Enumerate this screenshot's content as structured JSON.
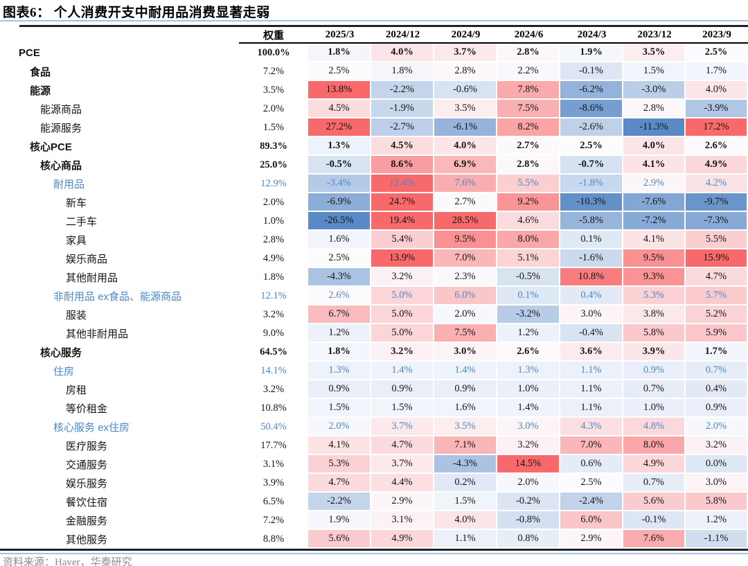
{
  "title": "图表6：  个人消费开支中耐用品消费显著走弱",
  "footer": "资料来源：Haver，华泰研究",
  "colors": {
    "heat_max_red": "#F8696B",
    "heat_neutral": "#FCFCFF",
    "heat_min_blue": "#5A8AC6",
    "highlight_row_text": "#4E86C6",
    "separator_blue": "#A4C2E4",
    "separator_dark": "#222222",
    "footer_gray": "#8C8C8C"
  },
  "chart_data": {
    "type": "heatmap",
    "title": "图表6：  个人消费开支中耐用品消费显著走弱",
    "columns": [
      "权重",
      "2025/3",
      "2024/12",
      "2024/9",
      "2024/6",
      "2024/3",
      "2023/12",
      "2023/9"
    ],
    "value_unit": "%",
    "color_scale": {
      "max_color": "#F8696B",
      "mid_color": "#FCFCFF",
      "min_color": "#5A8AC6",
      "midpoint": 2.5,
      "red_saturation_value": 12.0,
      "blue_saturation_value": -11.0
    },
    "rows": [
      {
        "label": "PCE",
        "indent": 0,
        "label_bold": true,
        "values_bold": true,
        "blue": false,
        "weight": "100.0%",
        "values": [
          1.8,
          4.0,
          3.7,
          2.8,
          1.9,
          3.5,
          2.5
        ]
      },
      {
        "label": "食品",
        "indent": 1,
        "label_bold": true,
        "values_bold": false,
        "blue": false,
        "weight": "7.2%",
        "values": [
          2.5,
          1.8,
          2.8,
          2.2,
          -0.1,
          1.5,
          1.7
        ]
      },
      {
        "label": "能源",
        "indent": 1,
        "label_bold": true,
        "values_bold": false,
        "blue": false,
        "weight": "3.5%",
        "values": [
          13.8,
          -2.2,
          -0.6,
          7.8,
          -6.2,
          -3.0,
          4.0
        ]
      },
      {
        "label": "能源商品",
        "indent": 2,
        "label_bold": false,
        "values_bold": false,
        "blue": false,
        "weight": "2.0%",
        "values": [
          4.5,
          -1.9,
          3.5,
          7.5,
          -8.6,
          2.8,
          -3.9
        ]
      },
      {
        "label": "能源服务",
        "indent": 2,
        "label_bold": false,
        "values_bold": false,
        "blue": false,
        "weight": "1.5%",
        "values": [
          27.2,
          -2.7,
          -6.1,
          8.2,
          -2.6,
          -11.3,
          17.2
        ]
      },
      {
        "label": "核心PCE",
        "indent": 1,
        "label_bold": true,
        "values_bold": true,
        "blue": false,
        "weight": "89.3%",
        "values": [
          1.3,
          4.5,
          4.0,
          2.7,
          2.5,
          4.0,
          2.6
        ]
      },
      {
        "label": "核心商品",
        "indent": 2,
        "label_bold": true,
        "values_bold": true,
        "blue": false,
        "weight": "25.0%",
        "values": [
          -0.5,
          8.6,
          6.9,
          2.8,
          -0.7,
          4.1,
          4.9
        ]
      },
      {
        "label": "耐用品",
        "indent": 3,
        "label_bold": false,
        "values_bold": false,
        "blue": true,
        "weight": "12.9%",
        "values": [
          -3.4,
          12.4,
          7.6,
          5.5,
          -1.8,
          2.9,
          4.2
        ]
      },
      {
        "label": "新车",
        "indent": 4,
        "label_bold": false,
        "values_bold": false,
        "blue": false,
        "weight": "2.0%",
        "values": [
          -6.9,
          24.7,
          2.7,
          9.2,
          -10.3,
          -7.6,
          -9.7
        ]
      },
      {
        "label": "二手车",
        "indent": 4,
        "label_bold": false,
        "values_bold": false,
        "blue": false,
        "weight": "1.0%",
        "values": [
          -26.5,
          19.4,
          28.5,
          4.6,
          -5.8,
          -7.2,
          -7.3
        ]
      },
      {
        "label": "家具",
        "indent": 4,
        "label_bold": false,
        "values_bold": false,
        "blue": false,
        "weight": "2.8%",
        "values": [
          1.6,
          5.4,
          9.5,
          8.0,
          0.1,
          4.1,
          5.5
        ]
      },
      {
        "label": "娱乐商品",
        "indent": 4,
        "label_bold": false,
        "values_bold": false,
        "blue": false,
        "weight": "4.9%",
        "values": [
          2.5,
          13.9,
          7.0,
          5.1,
          -1.6,
          9.5,
          15.9
        ]
      },
      {
        "label": "其他耐用品",
        "indent": 4,
        "label_bold": false,
        "values_bold": false,
        "blue": false,
        "weight": "1.8%",
        "values": [
          -4.3,
          3.2,
          2.3,
          -0.5,
          10.8,
          9.3,
          4.7
        ]
      },
      {
        "label": "非耐用品 ex食品、能源商品",
        "indent": 3,
        "label_bold": false,
        "values_bold": false,
        "blue": true,
        "weight": "12.1%",
        "values": [
          2.6,
          5.0,
          6.0,
          0.1,
          0.4,
          5.3,
          5.7
        ]
      },
      {
        "label": "服装",
        "indent": 4,
        "label_bold": false,
        "values_bold": false,
        "blue": false,
        "weight": "3.2%",
        "values": [
          6.7,
          5.0,
          2.0,
          -3.2,
          3.0,
          3.8,
          5.2
        ]
      },
      {
        "label": "其他非耐用品",
        "indent": 4,
        "label_bold": false,
        "values_bold": false,
        "blue": false,
        "weight": "9.0%",
        "values": [
          1.2,
          5.0,
          7.5,
          1.2,
          -0.4,
          5.8,
          5.9
        ]
      },
      {
        "label": "核心服务",
        "indent": 2,
        "label_bold": true,
        "values_bold": true,
        "blue": false,
        "weight": "64.5%",
        "values": [
          1.8,
          3.2,
          3.0,
          2.6,
          3.6,
          3.9,
          1.7
        ]
      },
      {
        "label": "住房",
        "indent": 3,
        "label_bold": false,
        "values_bold": false,
        "blue": true,
        "weight": "14.1%",
        "values": [
          1.3,
          1.4,
          1.4,
          1.3,
          1.1,
          0.9,
          0.7
        ]
      },
      {
        "label": "房租",
        "indent": 4,
        "label_bold": false,
        "values_bold": false,
        "blue": false,
        "weight": "3.2%",
        "values": [
          0.9,
          0.9,
          0.9,
          1.0,
          1.1,
          0.7,
          0.4
        ]
      },
      {
        "label": "等价租金",
        "indent": 4,
        "label_bold": false,
        "values_bold": false,
        "blue": false,
        "weight": "10.8%",
        "values": [
          1.5,
          1.5,
          1.6,
          1.4,
          1.1,
          1.0,
          0.9
        ]
      },
      {
        "label": "核心服务 ex住房",
        "indent": 3,
        "label_bold": false,
        "values_bold": false,
        "blue": true,
        "weight": "50.4%",
        "values": [
          2.0,
          3.7,
          3.5,
          3.0,
          4.3,
          4.8,
          2.0
        ]
      },
      {
        "label": "医疗服务",
        "indent": 4,
        "label_bold": false,
        "values_bold": false,
        "blue": false,
        "weight": "17.7%",
        "values": [
          4.1,
          4.7,
          7.1,
          3.2,
          7.0,
          8.0,
          3.2
        ]
      },
      {
        "label": "交通服务",
        "indent": 4,
        "label_bold": false,
        "values_bold": false,
        "blue": false,
        "weight": "3.1%",
        "values": [
          5.3,
          3.7,
          -4.3,
          14.5,
          0.6,
          4.9,
          0.0
        ]
      },
      {
        "label": "娱乐服务",
        "indent": 4,
        "label_bold": false,
        "values_bold": false,
        "blue": false,
        "weight": "3.9%",
        "values": [
          4.7,
          4.4,
          0.2,
          2.0,
          2.5,
          0.7,
          3.0
        ]
      },
      {
        "label": "餐饮住宿",
        "indent": 4,
        "label_bold": false,
        "values_bold": false,
        "blue": false,
        "weight": "6.5%",
        "values": [
          -2.2,
          2.9,
          1.5,
          -0.2,
          -2.4,
          5.6,
          5.8
        ]
      },
      {
        "label": "金融服务",
        "indent": 4,
        "label_bold": false,
        "values_bold": false,
        "blue": false,
        "weight": "7.2%",
        "values": [
          1.9,
          3.1,
          4.0,
          -0.8,
          6.0,
          -0.1,
          1.2
        ]
      },
      {
        "label": "其他服务",
        "indent": 4,
        "label_bold": false,
        "values_bold": false,
        "blue": false,
        "weight": "8.8%",
        "values": [
          5.6,
          4.9,
          1.1,
          0.8,
          2.9,
          7.6,
          -1.1
        ]
      }
    ]
  }
}
